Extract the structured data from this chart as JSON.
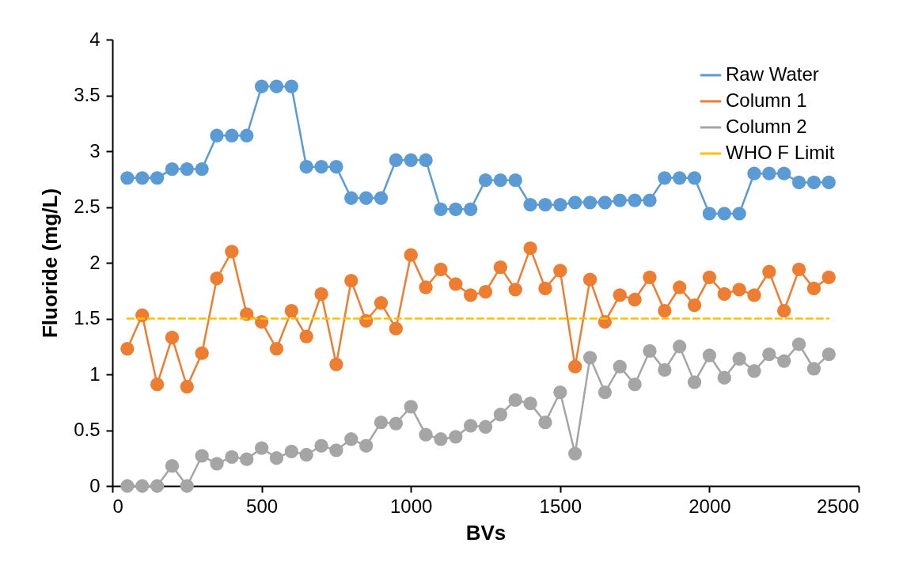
{
  "chart_data": {
    "type": "line",
    "xlabel": "BVs",
    "ylabel": "Fluoride (mg/L)",
    "x": [
      50,
      100,
      150,
      200,
      250,
      300,
      350,
      400,
      450,
      500,
      550,
      600,
      650,
      700,
      750,
      800,
      850,
      900,
      950,
      1000,
      1050,
      1100,
      1150,
      1200,
      1250,
      1300,
      1350,
      1400,
      1450,
      1500,
      1550,
      1600,
      1650,
      1700,
      1750,
      1800,
      1850,
      1900,
      1950,
      2000,
      2050,
      2100,
      2150,
      2200,
      2250,
      2300,
      2350,
      2400
    ],
    "series": [
      {
        "name": "Raw Water",
        "color": "#5b9bd5",
        "marker": "circle",
        "values": [
          2.76,
          2.76,
          2.76,
          2.84,
          2.84,
          2.84,
          3.14,
          3.14,
          3.14,
          3.58,
          3.58,
          3.58,
          2.86,
          2.86,
          2.86,
          2.58,
          2.58,
          2.58,
          2.92,
          2.92,
          2.92,
          2.48,
          2.48,
          2.48,
          2.74,
          2.74,
          2.74,
          2.52,
          2.52,
          2.52,
          2.54,
          2.54,
          2.54,
          2.56,
          2.56,
          2.56,
          2.76,
          2.76,
          2.76,
          2.44,
          2.44,
          2.44,
          2.8,
          2.8,
          2.8,
          2.72,
          2.72,
          2.72
        ]
      },
      {
        "name": "Column 1",
        "color": "#ed7d31",
        "marker": "circle",
        "values": [
          1.23,
          1.53,
          0.91,
          1.33,
          0.89,
          1.19,
          1.86,
          2.1,
          1.54,
          1.47,
          1.23,
          1.57,
          1.34,
          1.72,
          1.09,
          1.84,
          1.48,
          1.64,
          1.41,
          2.07,
          1.78,
          1.94,
          1.81,
          1.71,
          1.74,
          1.96,
          1.76,
          2.13,
          1.77,
          1.93,
          1.07,
          1.85,
          1.47,
          1.71,
          1.67,
          1.87,
          1.57,
          1.78,
          1.62,
          1.87,
          1.72,
          1.76,
          1.71,
          1.92,
          1.57,
          1.94,
          1.77,
          1.87
        ]
      },
      {
        "name": "Column 2",
        "color": "#a5a5a5",
        "marker": "circle",
        "values": [
          0,
          0,
          0,
          0.18,
          0,
          0.27,
          0.2,
          0.26,
          0.24,
          0.34,
          0.25,
          0.31,
          0.28,
          0.36,
          0.32,
          0.42,
          0.36,
          0.57,
          0.56,
          0.71,
          0.46,
          0.42,
          0.44,
          0.54,
          0.53,
          0.64,
          0.77,
          0.74,
          0.57,
          0.84,
          0.29,
          1.15,
          0.84,
          1.07,
          0.91,
          1.21,
          1.04,
          1.25,
          0.93,
          1.17,
          0.97,
          1.14,
          1.03,
          1.18,
          1.12,
          1.27,
          1.05,
          1.18
        ]
      },
      {
        "name": "WHO F Limit",
        "color": "#ffc000",
        "marker": "none",
        "line_style": "dashed",
        "x": [
          50,
          2400
        ],
        "values": [
          1.5,
          1.5
        ]
      }
    ],
    "xlim": [
      0,
      2500
    ],
    "xticks": [
      0,
      500,
      1000,
      1500,
      2000,
      2500
    ],
    "ylim": [
      0,
      4
    ],
    "yticks": [
      0,
      0.5,
      1,
      1.5,
      2,
      2.5,
      3,
      3.5,
      4
    ],
    "grid": false,
    "legend": "top right"
  }
}
